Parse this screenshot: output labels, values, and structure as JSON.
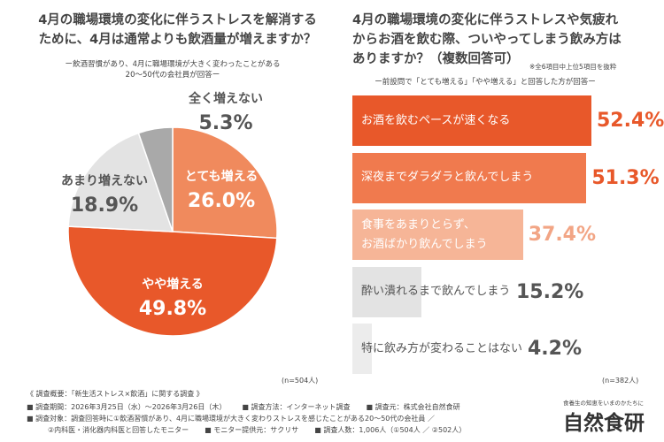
{
  "chart_data": [
    {
      "type": "pie",
      "title": "4月の職場環境の変化に伴うストレスを解消する\nために、4月は通常よりも飲酒量が増えますか？",
      "subtitle": "ー飲酒習慣があり、4月に職場環境が大きく変わったことがある\n20～50代の会社員が回答ー",
      "note": "(n=504人)",
      "categories": [
        "とても増える",
        "やや増える",
        "あまり増えない",
        "全く増えない"
      ],
      "values": [
        26.0,
        49.8,
        18.9,
        5.3
      ],
      "value_labels": [
        "26.0%",
        "49.8%",
        "18.9%",
        "5.3%"
      ],
      "colors": [
        "#f08a5d",
        "#e8582a",
        "#e3e3e3",
        "#a9a9a9"
      ],
      "label_colors": [
        "#ffffff",
        "#ffffff",
        "#555555",
        "#555555"
      ]
    },
    {
      "type": "hbar",
      "title": "4月の職場環境の変化に伴うストレスや気疲れ\nからお酒を飲む際、ついやってしまう飲み方は\nありますか？（複数回答可）",
      "annotation": "※全6項目中上位5項目を抜粋",
      "subtitle": "ー前設問で「とても増える」「やや増える」と回答した方が回答ー",
      "note": "(n=382人)",
      "categories": [
        "お酒を飲むペースが速くなる",
        "深夜までダラダラと飲んでしまう",
        "食事をあまりとらず、\nお酒ばかり飲んでしまう",
        "酔い潰れるまで飲んでしまう",
        "特に飲み方が変わることはない"
      ],
      "values": [
        52.4,
        51.3,
        37.4,
        15.2,
        4.2
      ],
      "value_labels": [
        "52.4%",
        "51.3%",
        "37.4%",
        "15.2%",
        "4.2%"
      ],
      "colors": [
        "#e8582a",
        "#f07a4e",
        "#f6b597",
        "#e3e3e3",
        "#ececec"
      ],
      "text_colors": [
        "#ffffff",
        "#ffffff",
        "#ffffff",
        "#555555",
        "#555555"
      ],
      "label_colors": [
        "#e8582a",
        "#e8582a",
        "#f2a585",
        "#555555",
        "#555555"
      ]
    }
  ],
  "footer": {
    "heading": "《 調査概要：「新生活ストレス×飲酒」に関する調査 》",
    "lines": [
      [
        "■ 調査期間：2026年3月25日（水）～2026年3月26日（木）",
        "■ 調査方法：インターネット調査",
        "■ 調査元：株式会社自然食研"
      ],
      [
        "■ 調査対象：調査回答時に①飲酒習慣があり、4月に職場環境が大きく変わりストレスを感じたことがある20～50代の会社員 ／"
      ],
      [
        "②内科医・消化器内科医と回答したモニター",
        "■ モニター提供元：サクリサ",
        "■ 調査人数：1,006人（①504人 ／ ②502人）"
      ]
    ]
  },
  "logo": {
    "tagline": "食養生の知恵をいまのかたちに",
    "name": "自然食研"
  }
}
